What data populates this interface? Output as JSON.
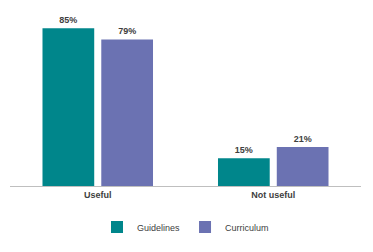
{
  "chart_data": {
    "type": "bar",
    "categories": [
      "Useful",
      "Not useful"
    ],
    "series": [
      {
        "name": "Guidelines",
        "color": "#00868b",
        "values": [
          85,
          15
        ],
        "value_labels": [
          "85%",
          "15%"
        ]
      },
      {
        "name": "Curriculum",
        "color": "#6b72b2",
        "values": [
          79,
          21
        ],
        "value_labels": [
          "79%",
          "21%"
        ]
      }
    ],
    "data_labels": true,
    "tick_labels": "x",
    "grid": false,
    "legend": "bottom"
  }
}
